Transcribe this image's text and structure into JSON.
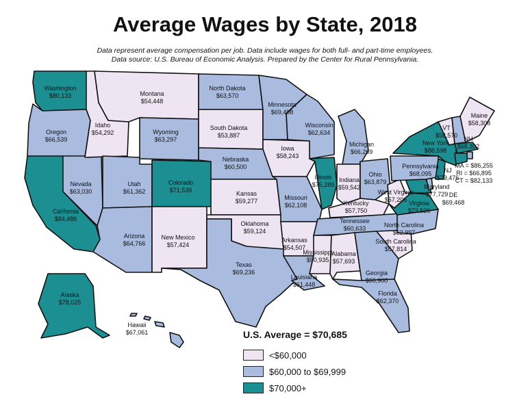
{
  "title": "Average Wages by State, 2018",
  "subtitle1": "Data represent average compensation per job. Data include wages for both full- and part-time employees.",
  "subtitle2": "Data source: U.S. Bureau of Economic Analysis. Prepared by the Center for Rural Pennsylvania.",
  "colors": {
    "low": "#efe4f2",
    "mid": "#a9bcdf",
    "high": "#1c8f93"
  },
  "legend": {
    "average": "U.S. Average = $70,685",
    "items": [
      {
        "label": "<$60,000",
        "color": "#efe4f2"
      },
      {
        "label": "$60,000 to $69,999",
        "color": "#a9bcdf"
      },
      {
        "label": "$70,000+",
        "color": "#1c8f93"
      }
    ]
  },
  "states": [
    {
      "id": "WA",
      "name": "Washington",
      "value": "$80,133",
      "tier": "high"
    },
    {
      "id": "OR",
      "name": "Oregon",
      "value": "$66,539",
      "tier": "mid"
    },
    {
      "id": "CA",
      "name": "California",
      "value": "$84,486",
      "tier": "high"
    },
    {
      "id": "ID",
      "name": "Idaho",
      "value": "$54,292",
      "tier": "low"
    },
    {
      "id": "NV",
      "name": "Nevada",
      "value": "$63,030",
      "tier": "mid"
    },
    {
      "id": "MT",
      "name": "Montana",
      "value": "$54,448",
      "tier": "low"
    },
    {
      "id": "WY",
      "name": "Wyoming",
      "value": "$63,297",
      "tier": "mid"
    },
    {
      "id": "UT",
      "name": "Utah",
      "value": "$61,362",
      "tier": "mid"
    },
    {
      "id": "AZ",
      "name": "Arizona",
      "value": "$64,766",
      "tier": "mid"
    },
    {
      "id": "CO",
      "name": "Colorado",
      "value": "$71,539",
      "tier": "high"
    },
    {
      "id": "NM",
      "name": "New Mexico",
      "value": "$57,424",
      "tier": "low"
    },
    {
      "id": "ND",
      "name": "North Dakota",
      "value": "$63,570",
      "tier": "mid"
    },
    {
      "id": "SD",
      "name": "South Dakota",
      "value": "$53,887",
      "tier": "low"
    },
    {
      "id": "NE",
      "name": "Nebraska",
      "value": "$60,500",
      "tier": "mid"
    },
    {
      "id": "KS",
      "name": "Kansas",
      "value": "$59,277",
      "tier": "low"
    },
    {
      "id": "OK",
      "name": "Oklahoma",
      "value": "$59,124",
      "tier": "low"
    },
    {
      "id": "TX",
      "name": "Texas",
      "value": "$69,236",
      "tier": "mid"
    },
    {
      "id": "MN",
      "name": "Minnesota",
      "value": "$69,498",
      "tier": "mid"
    },
    {
      "id": "IA",
      "name": "Iowa",
      "value": "$58,243",
      "tier": "low"
    },
    {
      "id": "MO",
      "name": "Missouri",
      "value": "$62,108",
      "tier": "mid"
    },
    {
      "id": "AR",
      "name": "Arkansas",
      "value": "$54,507",
      "tier": "low"
    },
    {
      "id": "LA",
      "name": "Louisiana",
      "value": "$61,448",
      "tier": "mid"
    },
    {
      "id": "WI",
      "name": "Wisconsin",
      "value": "$62,634",
      "tier": "mid"
    },
    {
      "id": "IL",
      "name": "Illinois",
      "value": "$75,289",
      "tier": "high"
    },
    {
      "id": "MI",
      "name": "Michigan",
      "value": "$66,269",
      "tier": "mid"
    },
    {
      "id": "IN",
      "name": "Indiana",
      "value": "$59,542",
      "tier": "low"
    },
    {
      "id": "OH",
      "name": "Ohio",
      "value": "$63,879",
      "tier": "mid"
    },
    {
      "id": "KY",
      "name": "Kentucky",
      "value": "$57,750",
      "tier": "low"
    },
    {
      "id": "TN",
      "name": "Tennessee",
      "value": "$60,633",
      "tier": "mid"
    },
    {
      "id": "MS",
      "name": "Mississippi",
      "value": "$50,935",
      "tier": "low"
    },
    {
      "id": "AL",
      "name": "Alabama",
      "value": "$57,693",
      "tier": "low"
    },
    {
      "id": "GA",
      "name": "Georgia",
      "value": "$66,900",
      "tier": "mid"
    },
    {
      "id": "FL",
      "name": "Florida",
      "value": "$62,370",
      "tier": "mid"
    },
    {
      "id": "SC",
      "name": "South Carolina",
      "value": "$57,814",
      "tier": "low"
    },
    {
      "id": "NC",
      "name": "North Carolina",
      "value": "$62,997",
      "tier": "mid"
    },
    {
      "id": "VA",
      "name": "Virginia",
      "value": "$73,526",
      "tier": "high"
    },
    {
      "id": "WV",
      "name": "West Virginia",
      "value": "$57,206",
      "tier": "low"
    },
    {
      "id": "MD",
      "name": "Maryland",
      "value": "$77,729",
      "tier": "high"
    },
    {
      "id": "DE",
      "name": "DE",
      "value": "$69,468",
      "tier": "mid"
    },
    {
      "id": "PA",
      "name": "Pennsylvania",
      "value": "$68,095",
      "tier": "mid"
    },
    {
      "id": "NJ",
      "name": "NJ",
      "value": "$79,476",
      "tier": "high"
    },
    {
      "id": "NY",
      "name": "New York",
      "value": "$88,598",
      "tier": "high"
    },
    {
      "id": "VT",
      "name": "VT",
      "value": "$58,570",
      "tier": "low"
    },
    {
      "id": "NH",
      "name": "NH",
      "value": "$68,302",
      "tier": "mid"
    },
    {
      "id": "ME",
      "name": "Maine",
      "value": "$58,308",
      "tier": "low"
    },
    {
      "id": "MA",
      "name": "MA",
      "value": "$86,255",
      "tier": "high"
    },
    {
      "id": "RI",
      "name": "RI",
      "value": "$66,895",
      "tier": "mid"
    },
    {
      "id": "CT",
      "name": "CT",
      "value": "$82,133",
      "tier": "high"
    },
    {
      "id": "AK",
      "name": "Alaska",
      "value": "$78,025",
      "tier": "high"
    },
    {
      "id": "HI",
      "name": "Hawaii",
      "value": "$67,061",
      "tier": "mid"
    }
  ]
}
